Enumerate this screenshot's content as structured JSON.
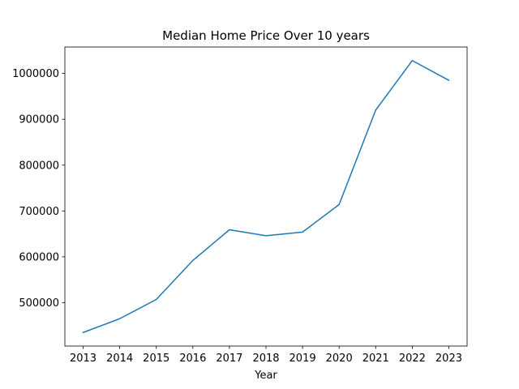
{
  "chart_data": {
    "type": "line",
    "title": "Median Home Price Over 10 years",
    "xlabel": "Year",
    "ylabel": "",
    "x": [
      2013,
      2014,
      2015,
      2016,
      2017,
      2018,
      2019,
      2020,
      2021,
      2022,
      2023
    ],
    "x_tick_labels": [
      "2013",
      "2014",
      "2015",
      "2016",
      "2017",
      "2018",
      "2019",
      "2020",
      "2021",
      "2022",
      "2023"
    ],
    "series": [
      {
        "values": [
          435000,
          465000,
          507000,
          592000,
          659000,
          646000,
          654000,
          714000,
          920000,
          1028000,
          985000
        ],
        "color": "#1f77b4"
      }
    ],
    "y_ticks": [
      500000,
      600000,
      700000,
      800000,
      900000,
      1000000
    ],
    "y_tick_labels": [
      "500000",
      "600000",
      "700000",
      "800000",
      "900000",
      "1000000"
    ],
    "xlim": [
      2012.5,
      2023.5
    ],
    "ylim": [
      405350,
      1057650
    ],
    "grid": false,
    "legend": "none"
  }
}
